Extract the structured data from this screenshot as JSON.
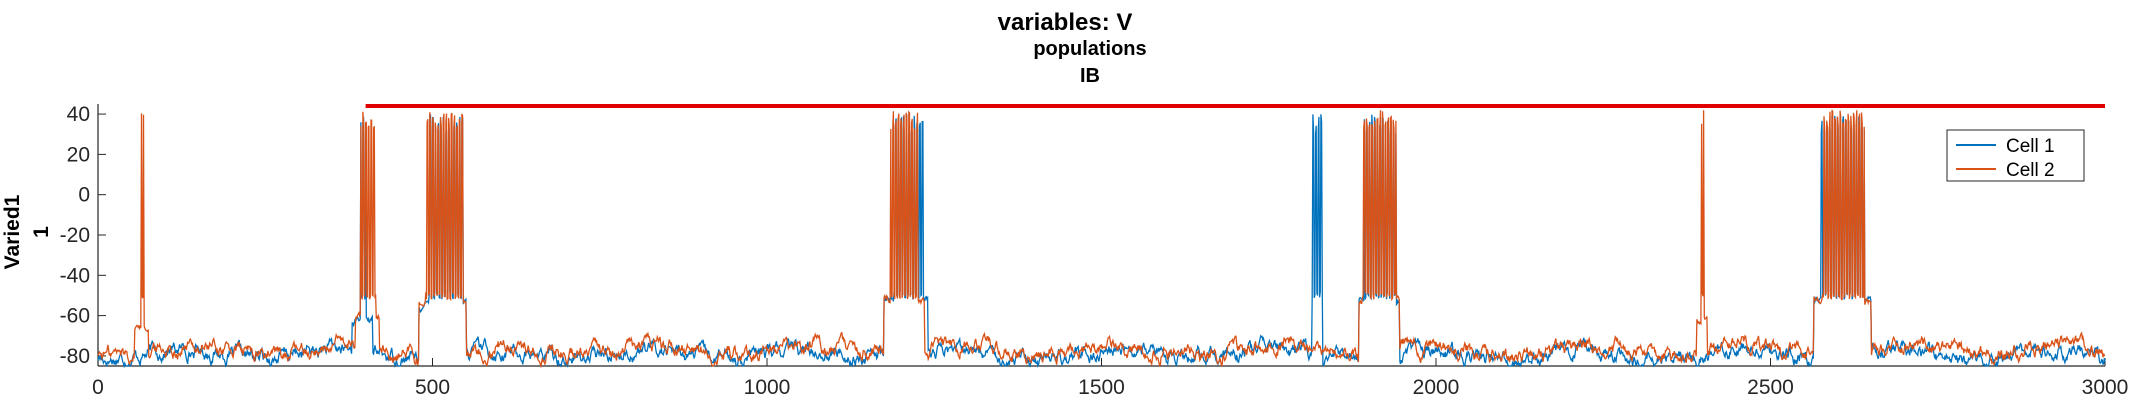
{
  "chart_data": {
    "type": "line",
    "title": "variables: V",
    "subtitle_1": "populations",
    "subtitle_2": "IB",
    "ylabel_1": "Varied1",
    "ylabel_2": "1",
    "xlabel": "",
    "xlim": [
      0,
      3000
    ],
    "ylim": [
      -85,
      45
    ],
    "x_ticks": [
      0,
      500,
      1000,
      1500,
      2000,
      2500,
      3000
    ],
    "y_ticks": [
      -80,
      -60,
      -40,
      -20,
      0,
      20,
      40
    ],
    "grid": false,
    "legend_position": "top-right",
    "threshold_line": {
      "y": 44,
      "x_start": 400,
      "x_end": 3000,
      "color": "#e00000"
    },
    "series": [
      {
        "name": "Cell 1",
        "color": "#0072bd",
        "baseline": -79,
        "noise": 3,
        "bursts": [
          [
            393,
            400
          ],
          [
            495,
            545
          ],
          [
            1190,
            1233
          ],
          [
            1815,
            1830
          ],
          [
            1893,
            1940
          ],
          [
            2575,
            2640
          ]
        ],
        "plateaus": [
          [
            380,
            410,
            -62
          ],
          [
            480,
            550,
            -55
          ],
          [
            1175,
            1240,
            -52
          ],
          [
            1885,
            1945,
            -52
          ],
          [
            2565,
            2650,
            -52
          ]
        ],
        "spike_peak": 40
      },
      {
        "name": "Cell 2",
        "color": "#d95319",
        "baseline": -77,
        "noise": 3,
        "bursts": [
          [
            65,
            68
          ],
          [
            393,
            415
          ],
          [
            490,
            545
          ],
          [
            1185,
            1225
          ],
          [
            1890,
            1940
          ],
          [
            2397,
            2400
          ],
          [
            2578,
            2640
          ]
        ],
        "plateaus": [
          [
            55,
            75,
            -65
          ],
          [
            385,
            420,
            -60
          ],
          [
            480,
            550,
            -53
          ],
          [
            1175,
            1235,
            -52
          ],
          [
            1885,
            1945,
            -52
          ],
          [
            2390,
            2405,
            -60
          ],
          [
            2565,
            2650,
            -52
          ]
        ],
        "spike_peak": 42
      }
    ]
  }
}
